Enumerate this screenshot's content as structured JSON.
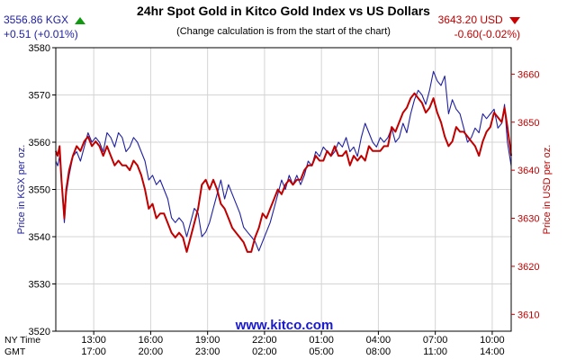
{
  "header": {
    "kgx_price": "3556.86 KGX",
    "kgx_change": "+0.51 (+0.01%)",
    "usd_price": "3643.20 USD",
    "usd_change": "-0.60(-0.02%)"
  },
  "colors": {
    "kgx_line": "#2020a0",
    "usd_line": "#c00000",
    "up": "#119911",
    "down": "#cc0000"
  },
  "icons": {
    "kgx_trend": "triangle-up-icon",
    "usd_trend": "triangle-down-icon"
  },
  "chart_data": {
    "type": "line",
    "title": "24hr Spot Gold in Kitco Gold Index vs US Dollars",
    "subtitle": "(Change calculation is from the start of the chart)",
    "watermark": "www.kitco.com",
    "ylabel_left": "Price in KGX per oz.",
    "ylabel_right": "Price in USD per oz.",
    "ylim_left": [
      3520,
      3580
    ],
    "ylim_right": [
      3606.5,
      3665.5
    ],
    "yticks_left": [
      3520,
      3530,
      3540,
      3550,
      3560,
      3570,
      3580
    ],
    "yticks_right": [
      3610,
      3620,
      3630,
      3640,
      3650,
      3660
    ],
    "x_row_labels": [
      "NY Time",
      "GMT"
    ],
    "x_ticks": [
      {
        "ny": "13:00",
        "gmt": "17:00",
        "h": 2
      },
      {
        "ny": "16:00",
        "gmt": "20:00",
        "h": 5
      },
      {
        "ny": "19:00",
        "gmt": "23:00",
        "h": 8
      },
      {
        "ny": "22:00",
        "gmt": "02:00",
        "h": 11
      },
      {
        "ny": "01:00",
        "gmt": "05:00",
        "h": 14
      },
      {
        "ny": "04:00",
        "gmt": "08:00",
        "h": 17
      },
      {
        "ny": "07:00",
        "gmt": "11:00",
        "h": 20
      },
      {
        "ny": "10:00",
        "gmt": "14:00",
        "h": 23
      }
    ],
    "xlim": [
      0,
      24
    ],
    "grid": true,
    "series": [
      {
        "name": "KGX",
        "axis": "left",
        "x": [
          0,
          0.1,
          0.2,
          0.3,
          0.45,
          0.55,
          0.7,
          0.9,
          1.1,
          1.3,
          1.5,
          1.7,
          1.9,
          2.1,
          2.3,
          2.5,
          2.7,
          2.9,
          3.1,
          3.3,
          3.5,
          3.7,
          3.9,
          4.1,
          4.3,
          4.5,
          4.7,
          4.9,
          5.1,
          5.3,
          5.5,
          5.7,
          5.9,
          6.1,
          6.3,
          6.5,
          6.7,
          6.9,
          7.1,
          7.3,
          7.5,
          7.7,
          7.9,
          8.1,
          8.3,
          8.5,
          8.7,
          8.9,
          9.1,
          9.3,
          9.5,
          9.7,
          9.9,
          10.1,
          10.3,
          10.5,
          10.7,
          10.9,
          11.1,
          11.3,
          11.5,
          11.7,
          11.9,
          12.1,
          12.3,
          12.5,
          12.7,
          12.9,
          13.1,
          13.3,
          13.5,
          13.7,
          13.9,
          14.1,
          14.3,
          14.5,
          14.7,
          14.9,
          15.1,
          15.3,
          15.5,
          15.7,
          15.9,
          16.1,
          16.3,
          16.5,
          16.7,
          16.9,
          17.1,
          17.3,
          17.5,
          17.7,
          17.9,
          18.1,
          18.3,
          18.5,
          18.7,
          18.9,
          19.1,
          19.3,
          19.5,
          19.7,
          19.9,
          20.1,
          20.3,
          20.5,
          20.7,
          20.9,
          21.1,
          21.3,
          21.5,
          21.7,
          21.9,
          22.1,
          22.3,
          22.5,
          22.7,
          22.9,
          23.1,
          23.3,
          23.5,
          23.65,
          23.8,
          24
        ],
        "values": [
          3556,
          3555,
          3557,
          3552,
          3543,
          3549,
          3553,
          3557,
          3558,
          3556,
          3559,
          3562,
          3560,
          3561,
          3560,
          3558,
          3562,
          3561,
          3559,
          3562,
          3561,
          3558,
          3559,
          3561,
          3560,
          3558,
          3556,
          3552,
          3553,
          3551,
          3552,
          3550,
          3548,
          3544,
          3543,
          3544,
          3543,
          3540,
          3543,
          3546,
          3545,
          3540,
          3541,
          3543,
          3546,
          3549,
          3552,
          3548,
          3551,
          3549,
          3547,
          3545,
          3542,
          3541,
          3540,
          3539,
          3537,
          3539,
          3541,
          3543,
          3546,
          3549,
          3552,
          3550,
          3553,
          3551,
          3553,
          3551,
          3553,
          3556,
          3555,
          3558,
          3557,
          3559,
          3558,
          3557,
          3558,
          3560,
          3559,
          3561,
          3558,
          3559,
          3557,
          3561,
          3564,
          3562,
          3560,
          3559,
          3561,
          3560,
          3561,
          3563,
          3560,
          3561,
          3564,
          3562,
          3566,
          3569,
          3571,
          3570,
          3568,
          3571,
          3575,
          3573,
          3572,
          3574,
          3566,
          3569,
          3567,
          3566,
          3563,
          3560,
          3561,
          3563,
          3562,
          3566,
          3565,
          3566,
          3567,
          3563,
          3564,
          3568,
          3560,
          3555
        ]
      },
      {
        "name": "USD",
        "axis": "right",
        "x": [
          0,
          0.1,
          0.2,
          0.3,
          0.45,
          0.55,
          0.7,
          0.9,
          1.1,
          1.3,
          1.5,
          1.7,
          1.9,
          2.1,
          2.3,
          2.5,
          2.7,
          2.9,
          3.1,
          3.3,
          3.5,
          3.7,
          3.9,
          4.1,
          4.3,
          4.5,
          4.7,
          4.9,
          5.1,
          5.3,
          5.5,
          5.7,
          5.9,
          6.1,
          6.3,
          6.5,
          6.7,
          6.9,
          7.1,
          7.3,
          7.5,
          7.7,
          7.9,
          8.1,
          8.3,
          8.5,
          8.7,
          8.9,
          9.1,
          9.3,
          9.5,
          9.7,
          9.9,
          10.1,
          10.3,
          10.5,
          10.7,
          10.9,
          11.1,
          11.3,
          11.5,
          11.7,
          11.9,
          12.1,
          12.3,
          12.5,
          12.7,
          12.9,
          13.1,
          13.3,
          13.5,
          13.7,
          13.9,
          14.1,
          14.3,
          14.5,
          14.7,
          14.9,
          15.1,
          15.3,
          15.5,
          15.7,
          15.9,
          16.1,
          16.3,
          16.5,
          16.7,
          16.9,
          17.1,
          17.3,
          17.5,
          17.7,
          17.9,
          18.1,
          18.3,
          18.5,
          18.7,
          18.9,
          19.1,
          19.3,
          19.5,
          19.7,
          19.9,
          20.1,
          20.3,
          20.5,
          20.7,
          20.9,
          21.1,
          21.3,
          21.5,
          21.7,
          21.9,
          22.1,
          22.3,
          22.5,
          22.7,
          22.9,
          23.1,
          23.3,
          23.5,
          23.65,
          23.8,
          24
        ],
        "values": [
          3644,
          3643,
          3645,
          3638,
          3630,
          3636,
          3640,
          3643,
          3645,
          3644,
          3646,
          3647,
          3645,
          3646,
          3645,
          3643,
          3645,
          3643,
          3641,
          3642,
          3641,
          3641,
          3640,
          3642,
          3641,
          3639,
          3636,
          3632,
          3633,
          3630,
          3631,
          3631,
          3629,
          3627,
          3626,
          3627,
          3626,
          3623,
          3626,
          3629,
          3632,
          3637,
          3638,
          3636,
          3638,
          3636,
          3633,
          3632,
          3630,
          3628,
          3627,
          3626,
          3625,
          3623,
          3623,
          3626,
          3628,
          3631,
          3630,
          3632,
          3634,
          3636,
          3635,
          3637,
          3638,
          3637,
          3638,
          3638,
          3640,
          3641,
          3641,
          3643,
          3642,
          3642,
          3644,
          3643,
          3645,
          3643,
          3643,
          3644,
          3641,
          3643,
          3642,
          3643,
          3642,
          3645,
          3644,
          3644,
          3644,
          3645,
          3645,
          3649,
          3648,
          3650,
          3652,
          3653,
          3655,
          3656,
          3655,
          3654,
          3652,
          3653,
          3655,
          3652,
          3650,
          3647,
          3645,
          3646,
          3649,
          3648,
          3648,
          3647,
          3646,
          3645,
          3643,
          3646,
          3648,
          3649,
          3652,
          3651,
          3650,
          3653,
          3649,
          3643
        ]
      }
    ]
  }
}
